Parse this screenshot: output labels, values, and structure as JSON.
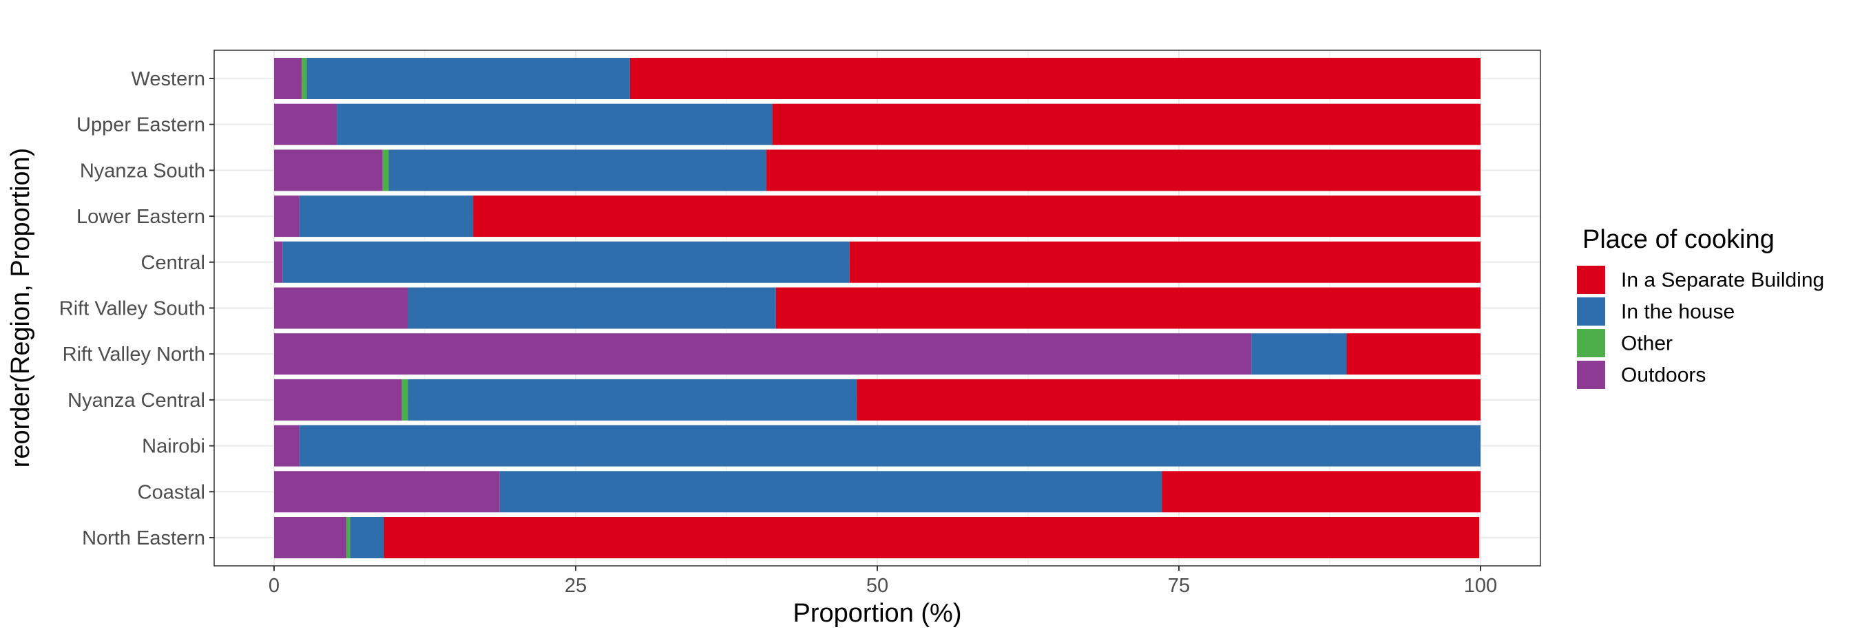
{
  "chart_data": {
    "type": "bar",
    "orientation": "horizontal",
    "stacked": true,
    "xlabel": "Proportion (%)",
    "ylabel": "reorder(Region, Proportion)",
    "xlim": [
      0,
      100
    ],
    "x_ticks": [
      0,
      25,
      50,
      75,
      100
    ],
    "categories": [
      "Western",
      "Upper Eastern",
      "Nyanza South",
      "Lower Eastern",
      "Central",
      "Rift Valley South",
      "Rift Valley North",
      "Nyanza Central",
      "Nairobi",
      "Coastal",
      "North Eastern"
    ],
    "series": [
      {
        "name": "Outdoors",
        "color": "#8C3A94",
        "values": [
          2.3,
          5.2,
          9.0,
          2.1,
          0.7,
          11.1,
          81.0,
          10.6,
          2.1,
          18.7,
          6.0
        ]
      },
      {
        "name": "Other",
        "color": "#4DAF4A",
        "values": [
          0.4,
          0.0,
          0.5,
          0.0,
          0.0,
          0.0,
          0.0,
          0.5,
          0.0,
          0.0,
          0.3
        ]
      },
      {
        "name": "In the house",
        "color": "#2F6EAC",
        "values": [
          26.8,
          36.1,
          31.3,
          14.4,
          47.0,
          30.5,
          7.9,
          37.2,
          97.9,
          54.9,
          2.8
        ]
      },
      {
        "name": "In a Separate Building",
        "color": "#DB0019",
        "values": [
          70.5,
          58.7,
          59.2,
          83.5,
          52.3,
          58.4,
          11.1,
          51.7,
          0.0,
          26.4,
          90.8
        ]
      }
    ],
    "legend": {
      "title": "Place of cooking",
      "position": "right",
      "order": [
        "In a Separate Building",
        "In the house",
        "Other",
        "Outdoors"
      ]
    },
    "grid": true,
    "theme": "bw"
  }
}
